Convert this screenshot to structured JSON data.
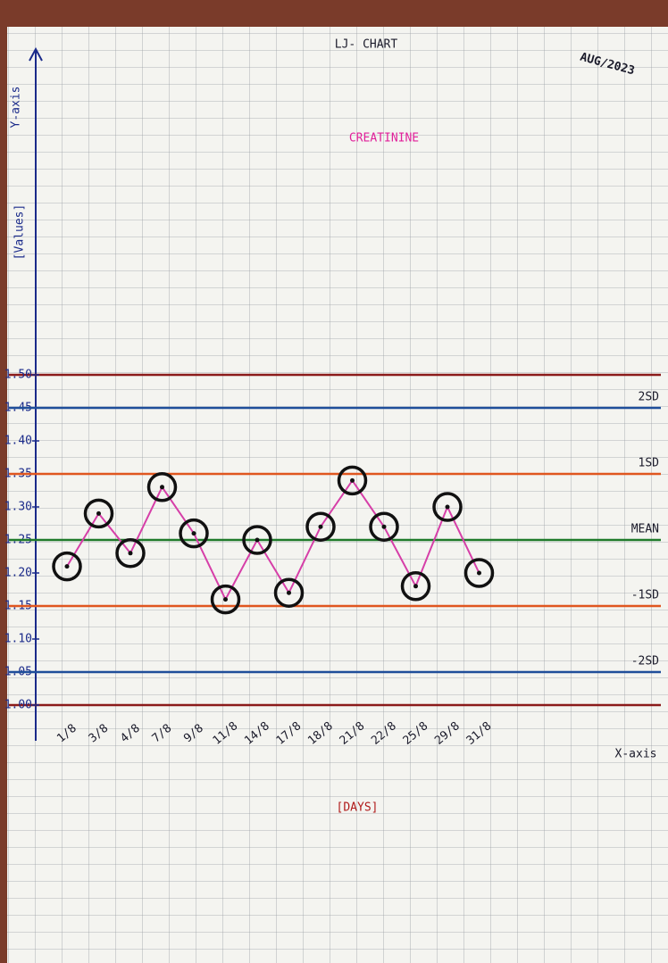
{
  "chart_data": {
    "type": "line",
    "title": "LJ- CHART",
    "date_label": "AUG/2023",
    "subtitle": "CREATININE",
    "y_axis_label": "[Values]",
    "y_axis_name": "Y-axis",
    "x_axis_name": "X-axis",
    "x_axis_label": "[DAYS]",
    "categories": [
      "1/8",
      "3/8",
      "4/8",
      "7/8",
      "9/8",
      "11/8",
      "14/8",
      "17/8",
      "18/8",
      "21/8",
      "22/8",
      "25/8",
      "29/8",
      "31/8"
    ],
    "series": [
      {
        "color": "#d63fa8",
        "values": [
          1.21,
          1.29,
          1.23,
          1.33,
          1.26,
          1.16,
          1.25,
          1.17,
          1.27,
          1.34,
          1.27,
          1.18,
          1.3,
          1.2
        ]
      }
    ],
    "ylim": [
      1.0,
      1.5
    ],
    "yticks": [
      {
        "value": 1.0,
        "label": "1.00"
      },
      1.05,
      {
        "value": 1.1,
        "label": "1.10"
      },
      1.15,
      {
        "value": 1.2,
        "label": "1.20"
      },
      1.25,
      {
        "value": 1.3,
        "label": "1.30"
      },
      1.35,
      {
        "value": 1.4,
        "label": "1.40"
      },
      1.45,
      {
        "value": 1.5,
        "label": "1.50"
      }
    ],
    "limit_color": "#8b1a1a",
    "reference_lines": [
      {
        "value": 1.45,
        "label": "2SD",
        "color": "#1f4e9a"
      },
      {
        "value": 1.35,
        "label": "1SD",
        "color": "#e0561f"
      },
      {
        "value": 1.25,
        "label": "MEAN",
        "color": "#1f7a2a"
      },
      {
        "value": 1.15,
        "label": "-1SD",
        "color": "#e0561f"
      },
      {
        "value": 1.05,
        "label": "-2SD",
        "color": "#1f4e9a"
      }
    ]
  }
}
